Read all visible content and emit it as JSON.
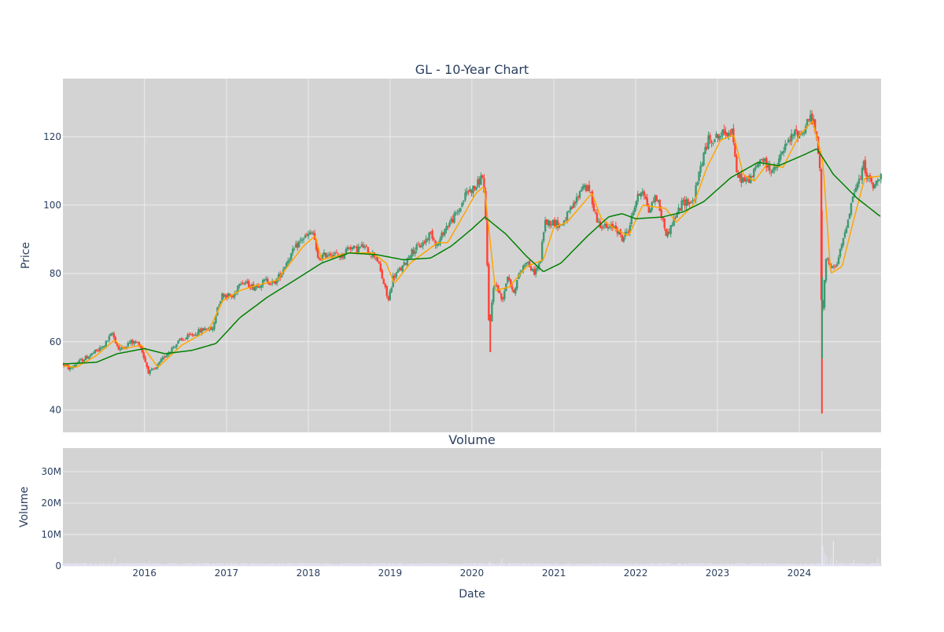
{
  "chart_data": [
    {
      "type": "candlestick",
      "title": "GL - 10-Year Chart",
      "ylabel": "Price",
      "ylim": [
        33.5,
        137
      ],
      "xlim": [
        "2015-01-02",
        "2024-12-31"
      ],
      "y_ticks": [
        40,
        60,
        80,
        100,
        120
      ],
      "grid": true,
      "legend": "none",
      "colors": {
        "up": "#3d9970",
        "down": "#ff4136",
        "ma_short": "#ffa500",
        "ma_long": "#008000",
        "background": "#d3d3d3",
        "grid": "#ebebeb"
      },
      "price_anchors": [
        [
          "2015-01-02",
          53.5
        ],
        [
          "2015-02-01",
          52
        ],
        [
          "2015-03-01",
          53.5
        ],
        [
          "2015-05-01",
          56
        ],
        [
          "2015-07-01",
          58.5
        ],
        [
          "2015-08-10",
          62.5
        ],
        [
          "2015-09-10",
          57.5
        ],
        [
          "2015-11-01",
          60
        ],
        [
          "2015-12-10",
          59.5
        ],
        [
          "2016-01-20",
          51
        ],
        [
          "2016-02-20",
          52
        ],
        [
          "2016-04-01",
          56
        ],
        [
          "2016-06-01",
          60
        ],
        [
          "2016-08-01",
          62
        ],
        [
          "2016-10-01",
          64
        ],
        [
          "2016-11-01",
          63.5
        ],
        [
          "2016-11-20",
          70
        ],
        [
          "2016-12-15",
          74
        ],
        [
          "2017-02-01",
          73
        ],
        [
          "2017-03-01",
          78
        ],
        [
          "2017-05-01",
          76
        ],
        [
          "2017-07-01",
          78
        ],
        [
          "2017-08-01",
          77
        ],
        [
          "2017-09-01",
          80
        ],
        [
          "2017-10-01",
          84
        ],
        [
          "2017-12-01",
          90
        ],
        [
          "2018-01-25",
          92
        ],
        [
          "2018-02-10",
          84
        ],
        [
          "2018-04-01",
          86
        ],
        [
          "2018-06-01",
          85
        ],
        [
          "2018-07-01",
          88
        ],
        [
          "2018-08-01",
          87
        ],
        [
          "2018-09-01",
          88
        ],
        [
          "2018-10-01",
          86
        ],
        [
          "2018-11-01",
          85
        ],
        [
          "2018-12-24",
          72
        ],
        [
          "2019-01-15",
          79
        ],
        [
          "2019-03-01",
          82
        ],
        [
          "2019-04-01",
          86
        ],
        [
          "2019-06-01",
          89
        ],
        [
          "2019-07-01",
          92
        ],
        [
          "2019-08-01",
          88
        ],
        [
          "2019-09-01",
          93
        ],
        [
          "2019-11-01",
          98
        ],
        [
          "2019-12-10",
          104
        ],
        [
          "2020-01-15",
          105
        ],
        [
          "2020-02-20",
          109
        ],
        [
          "2020-03-05",
          92
        ],
        [
          "2020-03-18",
          63
        ],
        [
          "2020-03-24",
          67
        ],
        [
          "2020-04-10",
          78
        ],
        [
          "2020-05-15",
          72
        ],
        [
          "2020-06-10",
          80
        ],
        [
          "2020-07-01",
          74
        ],
        [
          "2020-08-01",
          80
        ],
        [
          "2020-09-01",
          84
        ],
        [
          "2020-10-01",
          80
        ],
        [
          "2020-11-01",
          83
        ],
        [
          "2020-11-20",
          95
        ],
        [
          "2021-01-01",
          95
        ],
        [
          "2021-02-01",
          94
        ],
        [
          "2021-04-01",
          100
        ],
        [
          "2021-05-10",
          106
        ],
        [
          "2021-06-10",
          104
        ],
        [
          "2021-07-15",
          95
        ],
        [
          "2021-09-01",
          93
        ],
        [
          "2021-10-01",
          94
        ],
        [
          "2021-11-01",
          90
        ],
        [
          "2021-12-01",
          93
        ],
        [
          "2022-01-01",
          101
        ],
        [
          "2022-02-01",
          105
        ],
        [
          "2022-03-01",
          98
        ],
        [
          "2022-04-01",
          103
        ],
        [
          "2022-05-20",
          91
        ],
        [
          "2022-06-15",
          95
        ],
        [
          "2022-08-01",
          101
        ],
        [
          "2022-09-15",
          101
        ],
        [
          "2022-10-20",
          112
        ],
        [
          "2022-11-20",
          119
        ],
        [
          "2023-01-01",
          120
        ],
        [
          "2023-02-01",
          121
        ],
        [
          "2023-03-10",
          122
        ],
        [
          "2023-03-25",
          109
        ],
        [
          "2023-05-01",
          107
        ],
        [
          "2023-06-01",
          108
        ],
        [
          "2023-07-15",
          114
        ],
        [
          "2023-08-15",
          111
        ],
        [
          "2023-09-15",
          110
        ],
        [
          "2023-10-20",
          116
        ],
        [
          "2023-12-10",
          121
        ],
        [
          "2024-01-15",
          121
        ],
        [
          "2024-02-15",
          126
        ],
        [
          "2024-03-10",
          123
        ],
        [
          "2024-04-05",
          109
        ],
        [
          "2024-04-10",
          56
        ],
        [
          "2024-04-18",
          75
        ],
        [
          "2024-05-01",
          86
        ],
        [
          "2024-05-20",
          81
        ],
        [
          "2024-06-15",
          82
        ],
        [
          "2024-07-15",
          90
        ],
        [
          "2024-08-01",
          95
        ],
        [
          "2024-09-01",
          104
        ],
        [
          "2024-10-01",
          108
        ],
        [
          "2024-10-15",
          112
        ],
        [
          "2024-11-01",
          108
        ],
        [
          "2024-12-01",
          105
        ],
        [
          "2024-12-31",
          110
        ]
      ],
      "ma_short_anchors": [
        [
          "2015-01-02",
          53
        ],
        [
          "2015-03-01",
          52.5
        ],
        [
          "2015-06-01",
          56
        ],
        [
          "2015-08-20",
          60.5
        ],
        [
          "2015-10-01",
          58
        ],
        [
          "2015-12-20",
          59
        ],
        [
          "2016-03-01",
          52.5
        ],
        [
          "2016-06-15",
          59
        ],
        [
          "2016-10-15",
          63.5
        ],
        [
          "2016-12-15",
          72
        ],
        [
          "2017-03-01",
          75
        ],
        [
          "2017-05-15",
          76.5
        ],
        [
          "2017-08-15",
          78
        ],
        [
          "2017-12-10",
          88
        ],
        [
          "2018-02-01",
          91
        ],
        [
          "2018-03-01",
          84
        ],
        [
          "2018-07-01",
          86
        ],
        [
          "2018-10-15",
          86
        ],
        [
          "2018-12-15",
          83
        ],
        [
          "2019-01-20",
          77
        ],
        [
          "2019-04-01",
          83
        ],
        [
          "2019-08-01",
          89
        ],
        [
          "2019-09-15",
          89
        ],
        [
          "2020-01-20",
          103.5
        ],
        [
          "2020-02-25",
          105.5
        ],
        [
          "2020-04-15",
          75
        ],
        [
          "2020-06-15",
          76
        ],
        [
          "2020-09-01",
          82
        ],
        [
          "2020-11-15",
          84
        ],
        [
          "2021-01-01",
          93.5
        ],
        [
          "2021-03-01",
          95
        ],
        [
          "2021-06-20",
          103.5
        ],
        [
          "2021-08-01",
          96
        ],
        [
          "2021-10-01",
          93
        ],
        [
          "2021-12-01",
          91
        ],
        [
          "2022-02-01",
          100
        ],
        [
          "2022-05-15",
          99
        ],
        [
          "2022-07-01",
          95
        ],
        [
          "2022-09-15",
          100
        ],
        [
          "2022-11-15",
          111
        ],
        [
          "2023-01-15",
          119
        ],
        [
          "2023-03-15",
          120.5
        ],
        [
          "2023-04-25",
          109
        ],
        [
          "2023-06-15",
          107
        ],
        [
          "2023-08-10",
          112
        ],
        [
          "2023-10-20",
          111
        ],
        [
          "2024-01-01",
          120.5
        ],
        [
          "2024-03-01",
          124.5
        ],
        [
          "2024-04-15",
          113
        ],
        [
          "2024-05-20",
          80
        ],
        [
          "2024-07-10",
          82
        ],
        [
          "2024-09-01",
          96
        ],
        [
          "2024-10-20",
          108
        ],
        [
          "2024-12-31",
          108.5
        ]
      ],
      "ma_long_anchors": [
        [
          "2015-01-02",
          53.5
        ],
        [
          "2015-06-01",
          54
        ],
        [
          "2015-09-01",
          56.5
        ],
        [
          "2016-01-01",
          58
        ],
        [
          "2016-04-01",
          56.5
        ],
        [
          "2016-08-01",
          57.5
        ],
        [
          "2016-11-15",
          59.5
        ],
        [
          "2017-03-01",
          67
        ],
        [
          "2017-07-01",
          73
        ],
        [
          "2017-11-01",
          78
        ],
        [
          "2018-03-01",
          83
        ],
        [
          "2018-07-01",
          86
        ],
        [
          "2018-11-01",
          85.5
        ],
        [
          "2019-03-01",
          84
        ],
        [
          "2019-07-01",
          84.5
        ],
        [
          "2019-10-01",
          88
        ],
        [
          "2020-01-01",
          93
        ],
        [
          "2020-02-28",
          96.5
        ],
        [
          "2020-06-01",
          91.5
        ],
        [
          "2020-09-01",
          85
        ],
        [
          "2020-11-15",
          80.5
        ],
        [
          "2021-02-01",
          83
        ],
        [
          "2021-06-01",
          91
        ],
        [
          "2021-09-01",
          96.5
        ],
        [
          "2021-11-01",
          97.5
        ],
        [
          "2022-01-01",
          96
        ],
        [
          "2022-05-01",
          96.5
        ],
        [
          "2022-08-01",
          98
        ],
        [
          "2022-11-01",
          101
        ],
        [
          "2023-03-01",
          108
        ],
        [
          "2023-07-01",
          112.5
        ],
        [
          "2023-10-01",
          111.5
        ],
        [
          "2024-02-01",
          115
        ],
        [
          "2024-03-20",
          116.5
        ],
        [
          "2024-06-01",
          109
        ],
        [
          "2024-09-15",
          102
        ],
        [
          "2024-12-31",
          96.5
        ]
      ]
    },
    {
      "type": "bar",
      "title": "Volume",
      "xlabel": "Date",
      "ylabel": "Volume",
      "ylim": [
        0,
        37500000
      ],
      "y_ticks": [
        0,
        10000000,
        20000000,
        30000000
      ],
      "y_tick_labels": [
        "0",
        "10M",
        "20M",
        "30M"
      ],
      "x_tick_labels": [
        "2016",
        "2017",
        "2018",
        "2019",
        "2020",
        "2021",
        "2022",
        "2023",
        "2024"
      ],
      "x_ticks": [
        "2016-01-01",
        "2017-01-01",
        "2018-01-01",
        "2019-01-01",
        "2020-01-01",
        "2021-01-01",
        "2022-01-01",
        "2023-01-01",
        "2024-01-01"
      ],
      "grid": true,
      "colors": {
        "bar": "#e0e0f0",
        "spike": "#ebebf5"
      },
      "baseline_volume": 700000,
      "volume_spikes": [
        [
          "2015-08-20",
          2500000
        ],
        [
          "2016-01-25",
          1600000
        ],
        [
          "2020-03-20",
          1500000
        ],
        [
          "2020-05-15",
          2500000
        ],
        [
          "2024-04-11",
          36500000
        ],
        [
          "2024-04-12",
          9000000
        ],
        [
          "2024-04-15",
          6500000
        ],
        [
          "2024-04-22",
          4000000
        ],
        [
          "2024-05-01",
          3000000
        ],
        [
          "2024-05-20",
          2500000
        ],
        [
          "2024-06-01",
          8000000
        ],
        [
          "2024-06-15",
          2000000
        ],
        [
          "2024-09-01",
          2000000
        ],
        [
          "2024-12-15",
          2500000
        ]
      ]
    }
  ]
}
